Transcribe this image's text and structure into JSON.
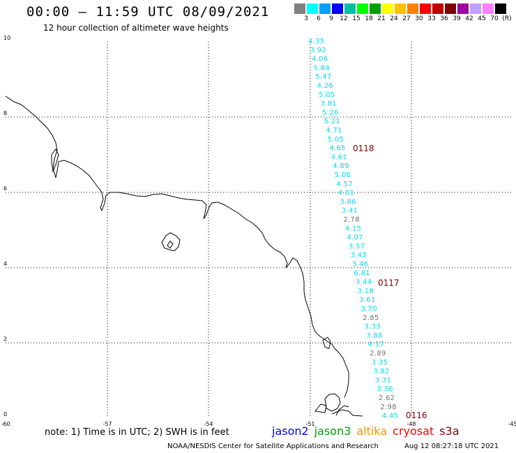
{
  "header": {
    "title": "00:00 – 11:59 UTC 08/09/2021",
    "subtitle": "12 hour collection of altimeter wave heights"
  },
  "color_scale": {
    "swatches": [
      "#808080",
      "#00ffff",
      "#00a0ff",
      "#0000ff",
      "#00c0a0",
      "#00ff00",
      "#00a000",
      "#ffff00",
      "#ffc000",
      "#ff8000",
      "#ff0000",
      "#c00000",
      "#800000",
      "#a000a0",
      "#c0a0ff",
      "#ff80ff",
      "#000000"
    ],
    "labels": [
      "3",
      "6",
      "9",
      "12",
      "15",
      "18",
      "21",
      "24",
      "27",
      "30",
      "33",
      "36",
      "39",
      "42",
      "45",
      "70",
      "(ft)"
    ]
  },
  "map": {
    "y_labels": [
      "10",
      "8",
      "6",
      "4",
      "2",
      "0"
    ],
    "x_labels": [
      "-60",
      "-57",
      "-54",
      "-51",
      "-48",
      "-45"
    ],
    "colors": {
      "cyan": "#00d8f0",
      "gray": "#707070",
      "pass": "#800000"
    },
    "passes": [
      "0118",
      "0117",
      "0116"
    ],
    "swh": [
      {
        "v": "4.35",
        "c": "cyan"
      },
      {
        "v": "3.92",
        "c": "cyan"
      },
      {
        "v": "4.06",
        "c": "cyan"
      },
      {
        "v": "5.84",
        "c": "cyan"
      },
      {
        "v": "5.47",
        "c": "cyan"
      },
      {
        "v": "4.26",
        "c": "cyan"
      },
      {
        "v": "5.05",
        "c": "cyan"
      },
      {
        "v": "3.81",
        "c": "cyan"
      },
      {
        "v": "5.26",
        "c": "cyan"
      },
      {
        "v": "5.21",
        "c": "cyan"
      },
      {
        "v": "4.71",
        "c": "cyan"
      },
      {
        "v": "5.05",
        "c": "cyan"
      },
      {
        "v": "4.65",
        "c": "cyan"
      },
      {
        "v": "4.61",
        "c": "cyan"
      },
      {
        "v": "4.89",
        "c": "cyan"
      },
      {
        "v": "5.06",
        "c": "cyan"
      },
      {
        "v": "4.57",
        "c": "cyan"
      },
      {
        "v": "4.01",
        "c": "cyan"
      },
      {
        "v": "3.86",
        "c": "cyan"
      },
      {
        "v": "3.41",
        "c": "cyan"
      },
      {
        "v": "2.78",
        "c": "gray"
      },
      {
        "v": "4.15",
        "c": "cyan"
      },
      {
        "v": "4.07",
        "c": "cyan"
      },
      {
        "v": "3.57",
        "c": "cyan"
      },
      {
        "v": "3.43",
        "c": "cyan"
      },
      {
        "v": "3.46",
        "c": "cyan"
      },
      {
        "v": "6.81",
        "c": "cyan"
      },
      {
        "v": "3.44",
        "c": "cyan"
      },
      {
        "v": "3.18",
        "c": "cyan"
      },
      {
        "v": "3.61",
        "c": "cyan"
      },
      {
        "v": "3.70",
        "c": "cyan"
      },
      {
        "v": "2.85",
        "c": "gray"
      },
      {
        "v": "3.33",
        "c": "cyan"
      },
      {
        "v": "3.88",
        "c": "cyan"
      },
      {
        "v": "4.17",
        "c": "cyan"
      },
      {
        "v": "2.89",
        "c": "gray"
      },
      {
        "v": "3.35",
        "c": "cyan"
      },
      {
        "v": "3.82",
        "c": "cyan"
      },
      {
        "v": "3.31",
        "c": "cyan"
      },
      {
        "v": "3.36",
        "c": "cyan"
      },
      {
        "v": "2.62",
        "c": "gray"
      },
      {
        "v": "2.98",
        "c": "gray"
      },
      {
        "v": "4.45",
        "c": "cyan"
      }
    ]
  },
  "footer": {
    "note": "note: 1) Time is in UTC; 2) SWH is in feet",
    "satellites": [
      {
        "name": "jason2",
        "color": "#0000ff"
      },
      {
        "name": "jason3",
        "color": "#00a000"
      },
      {
        "name": "altika",
        "color": "#ff9000"
      },
      {
        "name": "cryosat",
        "color": "#ff0000"
      },
      {
        "name": "s3a",
        "color": "#800000"
      }
    ],
    "credit": "NOAA/NESDIS Center for Satellite Applications and Research",
    "timestamp": "Aug 12 08:27:18 UTC 2021"
  }
}
